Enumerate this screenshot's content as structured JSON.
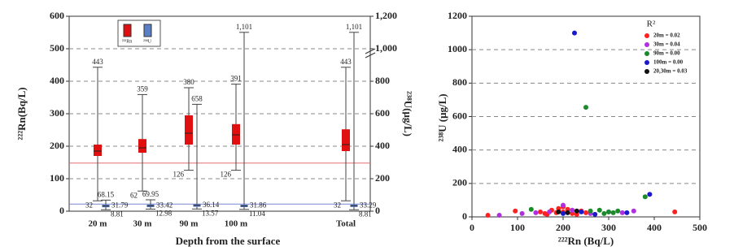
{
  "chart_data": [
    {
      "type": "box",
      "xlabel": "Depth from the surface",
      "ylabel": "²²²Rn(Bq/L)",
      "y2label": "²³⁸U(μg/L)",
      "categories": [
        "20 m",
        "30 m",
        "90 m",
        "100 m",
        "Total"
      ],
      "ylim": [
        0,
        600
      ],
      "yticks": [
        0,
        100,
        200,
        300,
        400,
        500,
        600
      ],
      "y2lim": [
        0,
        1200
      ],
      "y2ticks": [
        0,
        200,
        400,
        600,
        800,
        {
          "value": 1000,
          "label": "1,000"
        },
        {
          "value": 1200,
          "label": "1,200"
        }
      ],
      "grid": true,
      "series": [
        {
          "name": "²²²Rn",
          "color": "#e01010",
          "min": [
            32,
            62,
            126,
            126,
            32
          ],
          "q1": [
            170,
            180,
            205,
            205,
            185
          ],
          "median": [
            185,
            195,
            240,
            235,
            205
          ],
          "q3": [
            205,
            222,
            295,
            268,
            252
          ],
          "max": [
            443,
            359,
            380,
            391,
            443
          ]
        },
        {
          "name": "²³⁸U",
          "color": "#5b7fc4",
          "axis": "y2",
          "min": [
            8.81,
            12.98,
            13.57,
            11.04,
            8.81
          ],
          "q1": [
            24,
            25,
            27,
            25,
            26
          ],
          "median": [
            31.79,
            33.42,
            36.14,
            31.86,
            33.29
          ],
          "q3": [
            40,
            41,
            43,
            40,
            41
          ],
          "max": [
            68.15,
            69.95,
            658,
            1101,
            1101
          ],
          "max_labels": [
            "68.15",
            "69.95",
            "658",
            "1,101",
            "1,101"
          ]
        }
      ],
      "hlines": [
        {
          "value": 148,
          "color": "#e07070"
        },
        {
          "value": 22,
          "color": "#7a86d0"
        }
      ]
    },
    {
      "type": "scatter",
      "xlabel": "²²²Rn (Bq/L)",
      "ylabel": "²³⁸U (μg/L)",
      "legend_title": "R²",
      "legend": "upper right",
      "xlim": [
        0,
        500
      ],
      "xticks": [
        0,
        100,
        200,
        300,
        400,
        500
      ],
      "ylim": [
        0,
        1200
      ],
      "yticks": [
        0,
        200,
        400,
        600,
        800,
        1000,
        1200
      ],
      "grid": true,
      "series": [
        {
          "name": "20m = 0.02",
          "color": "#ff2020",
          "x": [
            35,
            95,
            150,
            160,
            175,
            185,
            200,
            210,
            220,
            240,
            250,
            200,
            445,
            165,
            190,
            230
          ],
          "values": [
            10,
            35,
            30,
            20,
            40,
            25,
            30,
            45,
            20,
            35,
            25,
            60,
            30,
            15,
            50,
            15
          ]
        },
        {
          "name": "30m = 0.04",
          "color": "#b030e0",
          "x": [
            60,
            140,
            170,
            200,
            220,
            260,
            300,
            330,
            355,
            110
          ],
          "values": [
            10,
            25,
            30,
            70,
            40,
            20,
            30,
            25,
            35,
            20
          ]
        },
        {
          "name": "90m = 0.00",
          "color": "#1a8a2a",
          "x": [
            130,
            250,
            280,
            300,
            310,
            320,
            380,
            290,
            260
          ],
          "values": [
            45,
            655,
            40,
            30,
            25,
            35,
            120,
            20,
            35
          ]
        },
        {
          "name": "100m = 0.00",
          "color": "#1a1acc",
          "x": [
            225,
            390,
            200,
            240,
            270,
            340
          ],
          "values": [
            1100,
            135,
            20,
            30,
            15,
            25
          ]
        },
        {
          "name": "20,30m = 0.03",
          "color": "#111111",
          "x": [
            190,
            210,
            230
          ],
          "values": [
            30,
            25,
            35
          ]
        }
      ]
    }
  ]
}
